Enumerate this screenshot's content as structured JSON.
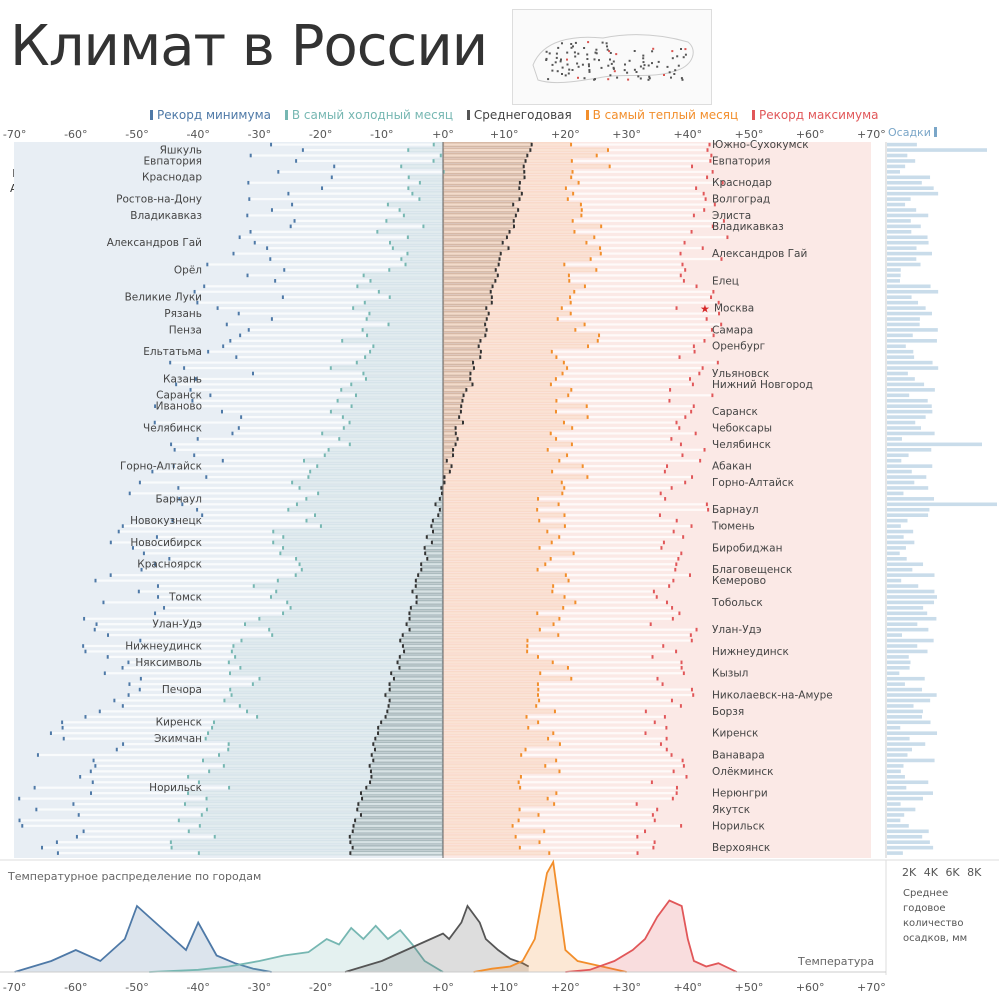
{
  "title": "Климат в России",
  "legend": [
    {
      "label": "Рекорд минимума",
      "color": "#4e79a7"
    },
    {
      "label": "В самый холодный месяц",
      "color": "#76b7b2"
    },
    {
      "label": "Среднегодовая",
      "color": "#555555"
    },
    {
      "label": "В самый теплый месяц",
      "color": "#f28e2b"
    },
    {
      "label": "Рекорд максимума",
      "color": "#e15759"
    }
  ],
  "search": {
    "label": "Найти город",
    "value": "All"
  },
  "precip_label": "Осадки",
  "precip_ticks": [
    "2K",
    "4K",
    "6K",
    "8K"
  ],
  "precip_note": "Среднее годовое количество осадков, мм",
  "distribution_title": "Температурное распределение по городам",
  "distribution_axis_label": "Температура",
  "highlight_city": "Москва",
  "chart_data": {
    "type": "bar",
    "x_ticks": [
      "-70°",
      "-60°",
      "-50°",
      "-40°",
      "-30°",
      "-20°",
      "-10°",
      "+0°",
      "+10°",
      "+20°",
      "+30°",
      "+40°",
      "+50°",
      "+60°",
      "+70°"
    ],
    "xlim": [
      -70,
      70
    ],
    "left_city_labels": [
      {
        "row": 1,
        "name": "Яшкуль"
      },
      {
        "row": 3,
        "name": "Евпатория"
      },
      {
        "row": 6,
        "name": "Краснодар"
      },
      {
        "row": 10,
        "name": "Ростов-на-Дону"
      },
      {
        "row": 13,
        "name": "Владикавказ"
      },
      {
        "row": 18,
        "name": "Александров Гай"
      },
      {
        "row": 23,
        "name": "Орёл"
      },
      {
        "row": 28,
        "name": "Великие Луки"
      },
      {
        "row": 31,
        "name": "Рязань"
      },
      {
        "row": 34,
        "name": "Пенза"
      },
      {
        "row": 38,
        "name": "Ельтатьма"
      },
      {
        "row": 43,
        "name": "Казань"
      },
      {
        "row": 46,
        "name": "Саранск"
      },
      {
        "row": 48,
        "name": "Иваново"
      },
      {
        "row": 52,
        "name": "Челябинск"
      },
      {
        "row": 59,
        "name": "Горно-Алтайск"
      },
      {
        "row": 65,
        "name": "Барнаул"
      },
      {
        "row": 69,
        "name": "Новокузнецк"
      },
      {
        "row": 73,
        "name": "Новосибирск"
      },
      {
        "row": 77,
        "name": "Красноярск"
      },
      {
        "row": 83,
        "name": "Томск"
      },
      {
        "row": 88,
        "name": "Улан-Удэ"
      },
      {
        "row": 92,
        "name": "Нижнеудинск"
      },
      {
        "row": 95,
        "name": "Няксимволь"
      },
      {
        "row": 100,
        "name": "Печора"
      },
      {
        "row": 106,
        "name": "Киренск"
      },
      {
        "row": 109,
        "name": "Экимчан"
      },
      {
        "row": 118,
        "name": "Норильск"
      }
    ],
    "right_city_labels": [
      {
        "row": 0,
        "name": "Южно-Сухокумск"
      },
      {
        "row": 3,
        "name": "Евпатория"
      },
      {
        "row": 7,
        "name": "Краснодар"
      },
      {
        "row": 10,
        "name": "Волгоград"
      },
      {
        "row": 13,
        "name": "Элиста"
      },
      {
        "row": 15,
        "name": "Владикавказ"
      },
      {
        "row": 20,
        "name": "Александров Гай"
      },
      {
        "row": 25,
        "name": "Елец"
      },
      {
        "row": 30,
        "name": "Москва"
      },
      {
        "row": 34,
        "name": "Самара"
      },
      {
        "row": 37,
        "name": "Оренбург"
      },
      {
        "row": 42,
        "name": "Ульяновск"
      },
      {
        "row": 44,
        "name": "Нижний Новгород"
      },
      {
        "row": 49,
        "name": "Саранск"
      },
      {
        "row": 52,
        "name": "Чебоксары"
      },
      {
        "row": 55,
        "name": "Челябинск"
      },
      {
        "row": 59,
        "name": "Абакан"
      },
      {
        "row": 62,
        "name": "Горно-Алтайск"
      },
      {
        "row": 67,
        "name": "Барнаул"
      },
      {
        "row": 70,
        "name": "Тюмень"
      },
      {
        "row": 74,
        "name": "Биробиджан"
      },
      {
        "row": 78,
        "name": "Благовещенск"
      },
      {
        "row": 80,
        "name": "Кемерово"
      },
      {
        "row": 84,
        "name": "Тобольск"
      },
      {
        "row": 89,
        "name": "Улан-Удэ"
      },
      {
        "row": 93,
        "name": "Нижнеудинск"
      },
      {
        "row": 97,
        "name": "Кызыл"
      },
      {
        "row": 101,
        "name": "Николаевск-на-Амуре"
      },
      {
        "row": 104,
        "name": "Борзя"
      },
      {
        "row": 108,
        "name": "Киренск"
      },
      {
        "row": 112,
        "name": "Ванавара"
      },
      {
        "row": 115,
        "name": "Олёкминск"
      },
      {
        "row": 119,
        "name": "Нерюнгри"
      },
      {
        "row": 122,
        "name": "Якутск"
      },
      {
        "row": 125,
        "name": "Норильск"
      },
      {
        "row": 129,
        "name": "Верхоянск"
      }
    ],
    "distribution": {
      "x_ticks": [
        "-70°",
        "-60°",
        "-50°",
        "-40°",
        "-30°",
        "-20°",
        "-10°",
        "+0°",
        "+10°",
        "+20°",
        "+30°",
        "+40°",
        "+50°",
        "+60°",
        "+70°"
      ],
      "series": [
        {
          "name": "Рекорд минимума",
          "color": "#4e79a7",
          "points": [
            [
              -70,
              0
            ],
            [
              -64,
              0.1
            ],
            [
              -60,
              0.2
            ],
            [
              -56,
              0.1
            ],
            [
              -52,
              0.3
            ],
            [
              -50,
              0.6
            ],
            [
              -48,
              0.5
            ],
            [
              -44,
              0.3
            ],
            [
              -42,
              0.2
            ],
            [
              -40,
              0.45
            ],
            [
              -37,
              0.15
            ],
            [
              -34,
              0.08
            ],
            [
              -31,
              0.03
            ],
            [
              -28,
              0
            ]
          ]
        },
        {
          "name": "В самый холодный месяц",
          "color": "#76b7b2",
          "points": [
            [
              -48,
              0
            ],
            [
              -40,
              0.02
            ],
            [
              -35,
              0.05
            ],
            [
              -30,
              0.1
            ],
            [
              -26,
              0.15
            ],
            [
              -22,
              0.18
            ],
            [
              -19,
              0.3
            ],
            [
              -17,
              0.25
            ],
            [
              -15,
              0.4
            ],
            [
              -13,
              0.3
            ],
            [
              -11,
              0.42
            ],
            [
              -9,
              0.3
            ],
            [
              -7,
              0.38
            ],
            [
              -5,
              0.25
            ],
            [
              -3,
              0.1
            ],
            [
              0,
              0
            ]
          ]
        },
        {
          "name": "Среднегодовая",
          "color": "#555555",
          "points": [
            [
              -16,
              0
            ],
            [
              -13,
              0.05
            ],
            [
              -10,
              0.1
            ],
            [
              -8,
              0.15
            ],
            [
              -6,
              0.2
            ],
            [
              -4,
              0.25
            ],
            [
              -2,
              0.3
            ],
            [
              0,
              0.35
            ],
            [
              1,
              0.3
            ],
            [
              3,
              0.45
            ],
            [
              4,
              0.6
            ],
            [
              6,
              0.45
            ],
            [
              7,
              0.3
            ],
            [
              9,
              0.2
            ],
            [
              11,
              0.12
            ],
            [
              13,
              0.08
            ],
            [
              14,
              0.05
            ]
          ]
        },
        {
          "name": "В самый теплый месяц",
          "color": "#f28e2b",
          "points": [
            [
              5,
              0
            ],
            [
              8,
              0.03
            ],
            [
              11,
              0.05
            ],
            [
              13,
              0.1
            ],
            [
              15,
              0.3
            ],
            [
              17,
              0.9
            ],
            [
              18,
              1.0
            ],
            [
              19,
              0.6
            ],
            [
              20,
              0.2
            ],
            [
              22,
              0.1
            ],
            [
              26,
              0.05
            ],
            [
              30,
              0
            ]
          ]
        },
        {
          "name": "Рекорд максимума",
          "color": "#e15759",
          "points": [
            [
              20,
              0
            ],
            [
              24,
              0.02
            ],
            [
              28,
              0.1
            ],
            [
              31,
              0.2
            ],
            [
              33,
              0.3
            ],
            [
              35,
              0.5
            ],
            [
              37,
              0.65
            ],
            [
              39,
              0.6
            ],
            [
              40,
              0.3
            ],
            [
              41,
              0.1
            ],
            [
              43,
              0.05
            ],
            [
              45,
              0.08
            ],
            [
              48,
              0
            ]
          ]
        }
      ]
    }
  }
}
